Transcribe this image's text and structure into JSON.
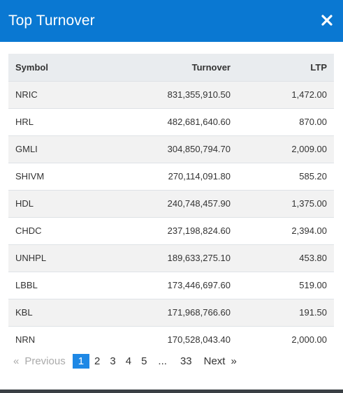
{
  "modal": {
    "title": "Top Turnover",
    "close_icon": "close-icon"
  },
  "table": {
    "headers": {
      "symbol": "Symbol",
      "turnover": "Turnover",
      "ltp": "LTP"
    },
    "rows": [
      {
        "symbol": "NRIC",
        "turnover": "831,355,910.50",
        "ltp": "1,472.00"
      },
      {
        "symbol": "HRL",
        "turnover": "482,681,640.60",
        "ltp": "870.00"
      },
      {
        "symbol": "GMLI",
        "turnover": "304,850,794.70",
        "ltp": "2,009.00"
      },
      {
        "symbol": "SHIVM",
        "turnover": "270,114,091.80",
        "ltp": "585.20"
      },
      {
        "symbol": "HDL",
        "turnover": "240,748,457.90",
        "ltp": "1,375.00"
      },
      {
        "symbol": "CHDC",
        "turnover": "237,198,824.60",
        "ltp": "2,394.00"
      },
      {
        "symbol": "UNHPL",
        "turnover": "189,633,275.10",
        "ltp": "453.80"
      },
      {
        "symbol": "LBBL",
        "turnover": "173,446,697.60",
        "ltp": "519.00"
      },
      {
        "symbol": "KBL",
        "turnover": "171,968,766.60",
        "ltp": "191.50"
      },
      {
        "symbol": "NRN",
        "turnover": "170,528,043.40",
        "ltp": "2,000.00"
      }
    ]
  },
  "pagination": {
    "previous_arrow": "«",
    "previous_label": "Previous",
    "pages": [
      "1",
      "2",
      "3",
      "4",
      "5"
    ],
    "ellipsis": "...",
    "last_page": "33",
    "next_label": "Next",
    "next_arrow": "»",
    "active_page": "1"
  },
  "colors": {
    "header_blue": "#0a78d2",
    "active_page": "#1e88e5",
    "stripe": "#f2f2f2",
    "table_head": "#e9ecef"
  }
}
